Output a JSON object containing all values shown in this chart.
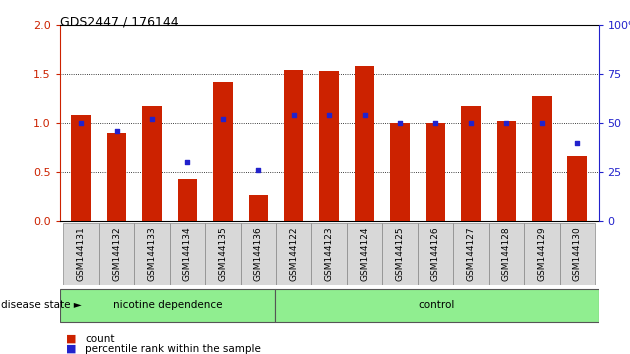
{
  "title": "GDS2447 / 176144",
  "samples": [
    "GSM144131",
    "GSM144132",
    "GSM144133",
    "GSM144134",
    "GSM144135",
    "GSM144136",
    "GSM144122",
    "GSM144123",
    "GSM144124",
    "GSM144125",
    "GSM144126",
    "GSM144127",
    "GSM144128",
    "GSM144129",
    "GSM144130"
  ],
  "count_values": [
    1.08,
    0.9,
    1.17,
    0.43,
    1.42,
    0.27,
    1.54,
    1.53,
    1.58,
    1.0,
    1.0,
    1.17,
    1.02,
    1.28,
    0.66
  ],
  "percentile_values_left_scale": [
    1.0,
    0.92,
    1.04,
    0.6,
    1.04,
    0.52,
    1.08,
    1.08,
    1.08,
    1.0,
    1.0,
    1.0,
    1.0,
    1.0,
    0.8
  ],
  "groups": [
    {
      "label": "nicotine dependence",
      "n": 6,
      "color": "#90EE90"
    },
    {
      "label": "control",
      "n": 9,
      "color": "#90EE90"
    }
  ],
  "bar_color": "#CC2200",
  "percentile_color": "#2222CC",
  "ylim_left": [
    0,
    2
  ],
  "ylim_right": [
    0,
    100
  ],
  "yticks_left": [
    0,
    0.5,
    1.0,
    1.5,
    2.0
  ],
  "yticks_right": [
    0,
    25,
    50,
    75,
    100
  ],
  "background_color": "#ffffff",
  "plot_bg": "#ffffff",
  "disease_state_label": "disease state",
  "legend_count": "count",
  "legend_percentile": "percentile rank within the sample",
  "bar_width": 0.55,
  "nd_count": 6,
  "ctrl_count": 9
}
